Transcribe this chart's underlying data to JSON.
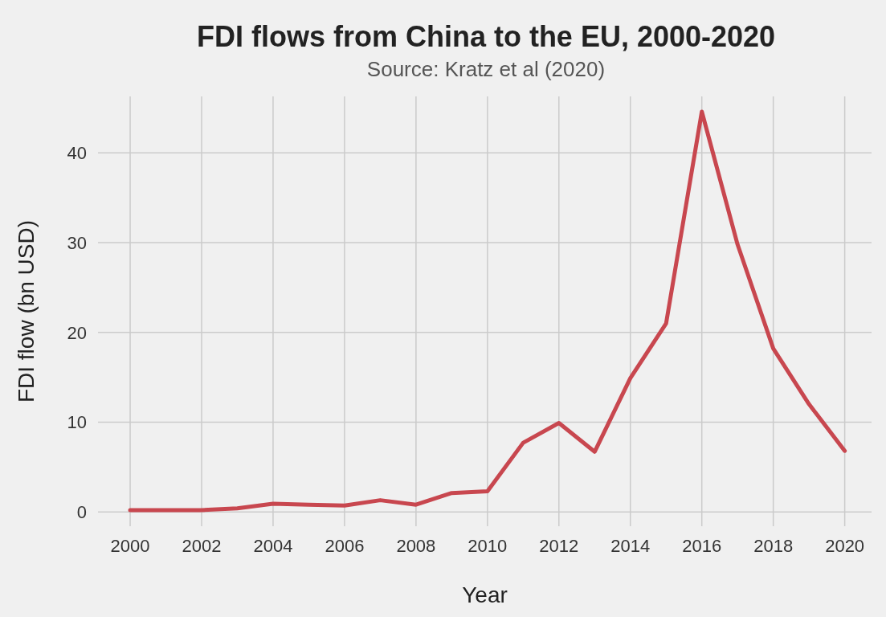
{
  "chart_data": {
    "type": "line",
    "title": "FDI flows from China to the EU, 2000-2020",
    "subtitle": "Source: Kratz et al (2020)",
    "xlabel": "Year",
    "ylabel": "FDI flow (bn USD)",
    "x": [
      2000,
      2001,
      2002,
      2003,
      2004,
      2005,
      2006,
      2007,
      2008,
      2009,
      2010,
      2011,
      2012,
      2013,
      2014,
      2015,
      2016,
      2017,
      2018,
      2019,
      2020
    ],
    "series": [
      {
        "color": "#c8474f",
        "values": [
          0.2,
          0.2,
          0.2,
          0.4,
          0.9,
          0.8,
          0.7,
          1.3,
          0.8,
          2.1,
          2.3,
          7.7,
          9.9,
          6.7,
          14.9,
          21.0,
          44.6,
          29.8,
          18.2,
          12.0,
          6.8
        ]
      }
    ],
    "xlim": [
      1999.1,
      2020.75
    ],
    "xticks": [
      2000,
      2002,
      2004,
      2006,
      2008,
      2010,
      2012,
      2014,
      2016,
      2018,
      2020
    ],
    "ylim": [
      -1.6,
      46.3
    ],
    "yticks": [
      0,
      10,
      20,
      30,
      40
    ],
    "grid": true,
    "marker": "none",
    "line_style": "solid"
  }
}
